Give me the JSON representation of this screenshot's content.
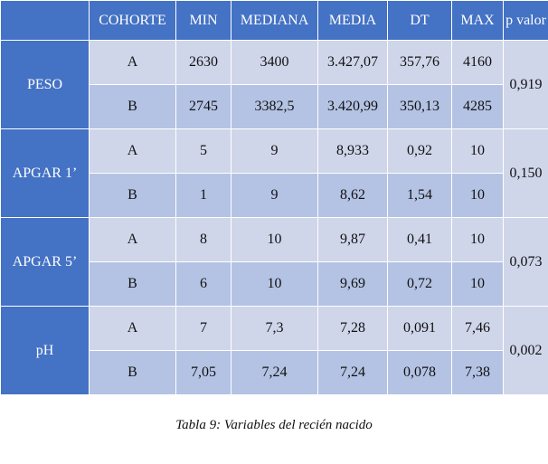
{
  "table": {
    "headers": [
      "",
      "COHORTE",
      "MIN",
      "MEDIANA",
      "MEDIA",
      "DT",
      "MAX",
      "p valor"
    ],
    "groups": [
      {
        "label": "PESO",
        "rows": [
          {
            "cohort": "A",
            "min": "2630",
            "mediana": "3400",
            "media": "3.427,07",
            "dt": "357,76",
            "max": "4160"
          },
          {
            "cohort": "B",
            "min": "2745",
            "mediana": "3382,5",
            "media": "3.420,99",
            "dt": "350,13",
            "max": "4285"
          }
        ],
        "p": "0,919"
      },
      {
        "label": "APGAR 1’",
        "rows": [
          {
            "cohort": "A",
            "min": "5",
            "mediana": "9",
            "media": "8,933",
            "dt": "0,92",
            "max": "10"
          },
          {
            "cohort": "B",
            "min": "1",
            "mediana": "9",
            "media": "8,62",
            "dt": "1,54",
            "max": "10"
          }
        ],
        "p": "0,150"
      },
      {
        "label": "APGAR 5’",
        "rows": [
          {
            "cohort": "A",
            "min": "8",
            "mediana": "10",
            "media": "9,87",
            "dt": "0,41",
            "max": "10"
          },
          {
            "cohort": "B",
            "min": "6",
            "mediana": "10",
            "media": "9,69",
            "dt": "0,72",
            "max": "10"
          }
        ],
        "p": "0,073"
      },
      {
        "label": "pH",
        "rows": [
          {
            "cohort": "A",
            "min": "7",
            "mediana": "7,3",
            "media": "7,28",
            "dt": "0,091",
            "max": "7,46"
          },
          {
            "cohort": "B",
            "min": "7,05",
            "mediana": "7,24",
            "media": "7,24",
            "dt": "0,078",
            "max": "7,38"
          }
        ],
        "p": "0,002"
      }
    ]
  },
  "caption": "Tabla 9: Variables del recién nacido"
}
